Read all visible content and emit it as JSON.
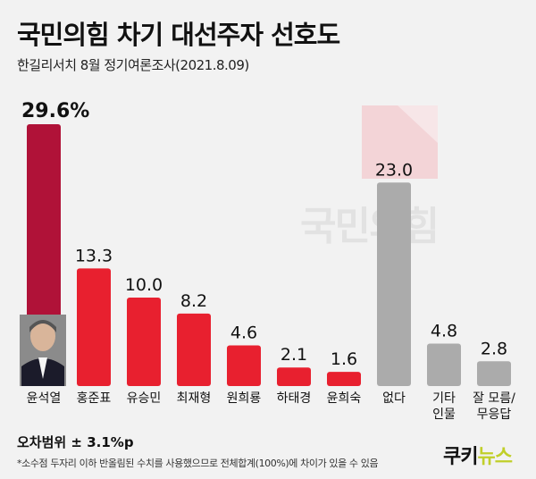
{
  "header": {
    "title": "국민의힘 차기 대선주자 선호도",
    "subtitle": "한길리서치 8월 정기여론조사(2021.8.09)"
  },
  "watermark": "국민의힘",
  "footer": {
    "margin_of_error": "오차범위 ± 3.1%p",
    "note": "*소수점 두자리 이하 반올림된 수치를 사용했으므로 전체합계(100%)에 차이가 있을 수 있음",
    "logo_k": "쿠키",
    "logo_n": "뉴스"
  },
  "colors": {
    "highlight": "#b01238",
    "primary": "#e8202f",
    "neutral": "#ababab",
    "pink_accent": "#f3d4d7"
  },
  "chart_data": {
    "type": "bar",
    "categories": [
      "윤석열",
      "홍준표",
      "유승민",
      "최재형",
      "원희룡",
      "하태경",
      "윤희숙",
      "없다",
      "기타\n인물",
      "잘 모름/\n무응답"
    ],
    "values": [
      29.6,
      13.3,
      10.0,
      8.2,
      4.6,
      2.1,
      1.6,
      23.0,
      4.8,
      2.8
    ],
    "value_labels": [
      "29.6%",
      "13.3",
      "10.0",
      "8.2",
      "4.6",
      "2.1",
      "1.6",
      "23.0",
      "4.8",
      "2.8"
    ],
    "bar_colors": [
      "highlight",
      "primary",
      "primary",
      "primary",
      "primary",
      "primary",
      "primary",
      "neutral",
      "neutral",
      "neutral"
    ],
    "ylim": [
      0,
      30
    ],
    "grid": false,
    "legend": "none"
  }
}
